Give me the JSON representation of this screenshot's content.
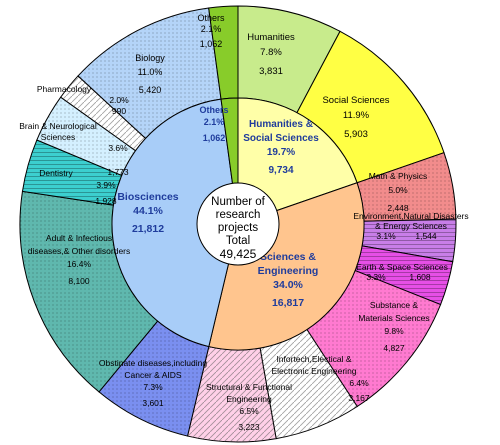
{
  "chart_data": {
    "type": "pie",
    "title": "",
    "center_label": {
      "lines": [
        "Number of",
        "research",
        "projects",
        "Total"
      ],
      "total": "49,425"
    },
    "inner": [
      {
        "name": "Humanities & Social Sciences",
        "label_lines": [
          "Humanities &",
          "Social Sciences"
        ],
        "percent_label": "19.7%",
        "count_label": "9,734",
        "value": 9734,
        "color": "#ffffa8",
        "text_color": "#1f3c9c"
      },
      {
        "name": "Sciences & Engineering",
        "label_lines": [
          "Sciences &",
          "Engineering"
        ],
        "percent_label": "34.0%",
        "count_label": "16,817",
        "value": 16817,
        "color": "#ffc58e",
        "text_color": "#1f3c9c"
      },
      {
        "name": "Biosciences",
        "label_lines": [
          "Biosciences"
        ],
        "percent_label": "44.1%",
        "count_label": "21,812",
        "value": 21812,
        "color": "#a8cdf8",
        "text_color": "#1f3c9c"
      },
      {
        "name": "Others",
        "label_lines": [
          "Others"
        ],
        "percent_label": "2.1%",
        "count_label": "1,062",
        "value": 1062,
        "color": "#88cc2a",
        "text_color": "#1f3c9c"
      }
    ],
    "outer": [
      {
        "name": "Humanities",
        "label_lines": [
          "Humanities"
        ],
        "percent_label": "7.8%",
        "count_label": "3,831",
        "value": 3831,
        "color": "#c8eb8c",
        "pattern": "solid"
      },
      {
        "name": "Social Sciences",
        "label_lines": [
          "Social Sciences"
        ],
        "percent_label": "11.9%",
        "count_label": "5,903",
        "value": 5903,
        "color": "#ffff44",
        "pattern": "solid"
      },
      {
        "name": "Math & Physics",
        "label_lines": [
          "Math & Physics"
        ],
        "percent_label": "5.0%",
        "count_label": "2,448",
        "value": 2448,
        "color": "#f28c8c",
        "pattern": "dots"
      },
      {
        "name": "Environment,Natural Disasters & Energy Sciences",
        "label_lines": [
          "Environment,Natural Disasters",
          "& Energy Sciences"
        ],
        "percent_label": "3.1%",
        "count_label": "1,544",
        "value": 1544,
        "color": "#c87ee8",
        "pattern": "hlines"
      },
      {
        "name": "Earth & Space Sciences",
        "label_lines": [
          "Earth & Space Sciences"
        ],
        "percent_label": "3.3%",
        "count_label": "1,608",
        "value": 1608,
        "color": "#e64fe6",
        "pattern": "hlines"
      },
      {
        "name": "Substance & Materials Sciences",
        "label_lines": [
          "Substance &",
          "Materials Sciences"
        ],
        "percent_label": "9.8%",
        "count_label": "4,827",
        "value": 4827,
        "color": "#ff7ad0",
        "pattern": "dots"
      },
      {
        "name": "Infortech,Electical & Electronic Engineering",
        "label_lines": [
          "Infortech,Electical &",
          "Electronic Engineering"
        ],
        "percent_label": "6.4%",
        "count_label": "3,167",
        "value": 3167,
        "color": "#ffffff",
        "pattern": "diag"
      },
      {
        "name": "Structural & Functional Engineering",
        "label_lines": [
          "Structural & Functional",
          "Engineering"
        ],
        "percent_label": "6.5%",
        "count_label": "3,223",
        "value": 3223,
        "color": "#ffd0e8",
        "pattern": "diag"
      },
      {
        "name": "Obstinate diseases,including Cancer & AIDS",
        "label_lines": [
          "Obstinate diseases,including",
          "Cancer & AIDS"
        ],
        "percent_label": "7.3%",
        "count_label": "3,601",
        "value": 3601,
        "color": "#7a8ff0",
        "pattern": "dots"
      },
      {
        "name": "Adult & Infectious diseases,& Other disorders",
        "label_lines": [
          "Adult & Infectious",
          "diseases,& Other disorders"
        ],
        "percent_label": "16.4%",
        "count_label": "8,100",
        "value": 8100,
        "color": "#5fb8ae",
        "pattern": "dots"
      },
      {
        "name": "Dentistry",
        "label_lines": [
          "Dentistry"
        ],
        "percent_label": "3.9%",
        "count_label": "1,928",
        "value": 1928,
        "color": "#3ccfcf",
        "pattern": "hlines"
      },
      {
        "name": "Brain & Neurological Sciences",
        "label_lines": [
          "Brain & Neurological",
          "Sciences"
        ],
        "percent_label": "3.6%",
        "count_label": "1,773",
        "value": 1773,
        "color": "#d4f0ff",
        "pattern": "dots"
      },
      {
        "name": "Pharmacology",
        "label_lines": [
          "Pharmacology"
        ],
        "percent_label": "2.0%",
        "count_label": "990",
        "value": 990,
        "color": "#ffffff",
        "pattern": "diag"
      },
      {
        "name": "Biology",
        "label_lines": [
          "Biology"
        ],
        "percent_label": "11.0%",
        "count_label": "5,420",
        "value": 5420,
        "color": "#b4d4f8",
        "pattern": "dots"
      },
      {
        "name": "Others",
        "label_lines": [
          "Others"
        ],
        "percent_label": "2.1%",
        "count_label": "1,062",
        "value": 1062,
        "color": "#88cc2a",
        "pattern": "solid"
      }
    ]
  }
}
